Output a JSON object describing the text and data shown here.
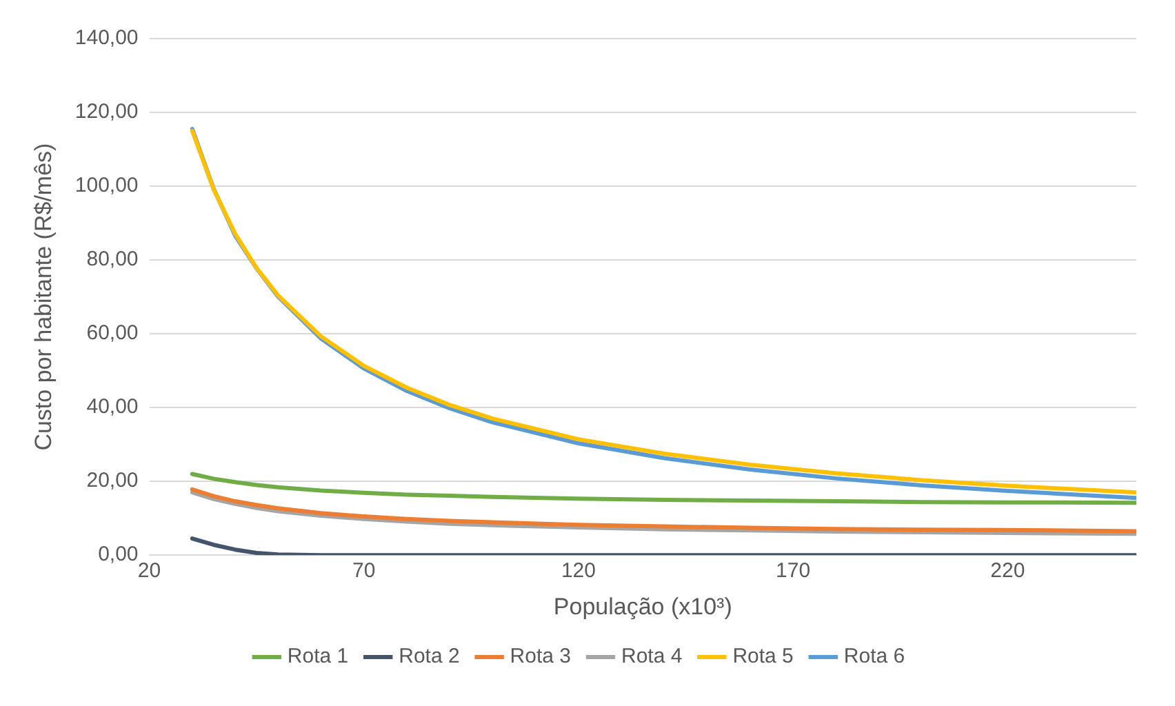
{
  "chart_data": {
    "type": "line",
    "xlabel": "População (x10³)",
    "ylabel": "Custo por habitante (R$/mês)",
    "x": [
      30,
      35,
      40,
      45,
      50,
      60,
      70,
      80,
      90,
      100,
      120,
      140,
      160,
      180,
      200,
      220,
      250
    ],
    "xlim": [
      20,
      250
    ],
    "xticks": [
      20,
      70,
      120,
      170,
      220
    ],
    "ylim": [
      0,
      140
    ],
    "yticks": [
      {
        "value": 0,
        "label": "0,00"
      },
      {
        "value": 20,
        "label": "20,00"
      },
      {
        "value": 40,
        "label": "40,00"
      },
      {
        "value": 60,
        "label": "60,00"
      },
      {
        "value": 80,
        "label": "80,00"
      },
      {
        "value": 100,
        "label": "100,00"
      },
      {
        "value": 120,
        "label": "120,00"
      },
      {
        "value": 140,
        "label": "140,00"
      }
    ],
    "grid": "y",
    "legend": "bottom",
    "marker": "none",
    "line_style": "solid",
    "series": [
      {
        "name": "Rota 1",
        "color": "#70ad47",
        "values": [
          22.0,
          20.7,
          19.8,
          19.0,
          18.4,
          17.5,
          16.9,
          16.4,
          16.1,
          15.8,
          15.3,
          15.0,
          14.8,
          14.6,
          14.4,
          14.3,
          14.2
        ]
      },
      {
        "name": "Rota 2",
        "color": "#44546a",
        "values": [
          4.5,
          2.8,
          1.5,
          0.6,
          0.2,
          0,
          0,
          0,
          0,
          0,
          0,
          0,
          0,
          0,
          0,
          0,
          0
        ]
      },
      {
        "name": "Rota 3",
        "color": "#ed7d31",
        "values": [
          17.8,
          16.0,
          14.6,
          13.6,
          12.7,
          11.4,
          10.5,
          9.8,
          9.3,
          8.9,
          8.2,
          7.8,
          7.4,
          7.1,
          6.9,
          6.8,
          6.5
        ]
      },
      {
        "name": "Rota 4",
        "color": "#a5a5a5",
        "values": [
          17.0,
          15.2,
          13.9,
          12.8,
          11.9,
          10.7,
          9.8,
          9.1,
          8.5,
          8.1,
          7.5,
          7.0,
          6.7,
          6.4,
          6.2,
          6.0,
          5.8
        ]
      },
      {
        "name": "Rota 5",
        "color": "#ffc000",
        "values": [
          115.0,
          99.1,
          87.1,
          77.8,
          70.4,
          59.3,
          51.3,
          45.4,
          40.7,
          37.0,
          31.4,
          27.5,
          24.5,
          22.2,
          20.3,
          18.8,
          17.0
        ]
      },
      {
        "name": "Rota 6",
        "color": "#5b9bd5",
        "values": [
          115.5,
          99.3,
          86.6,
          77.7,
          70.1,
          58.7,
          50.6,
          44.5,
          39.8,
          36.0,
          30.3,
          26.3,
          23.2,
          20.8,
          18.9,
          17.4,
          15.5
        ]
      }
    ]
  }
}
